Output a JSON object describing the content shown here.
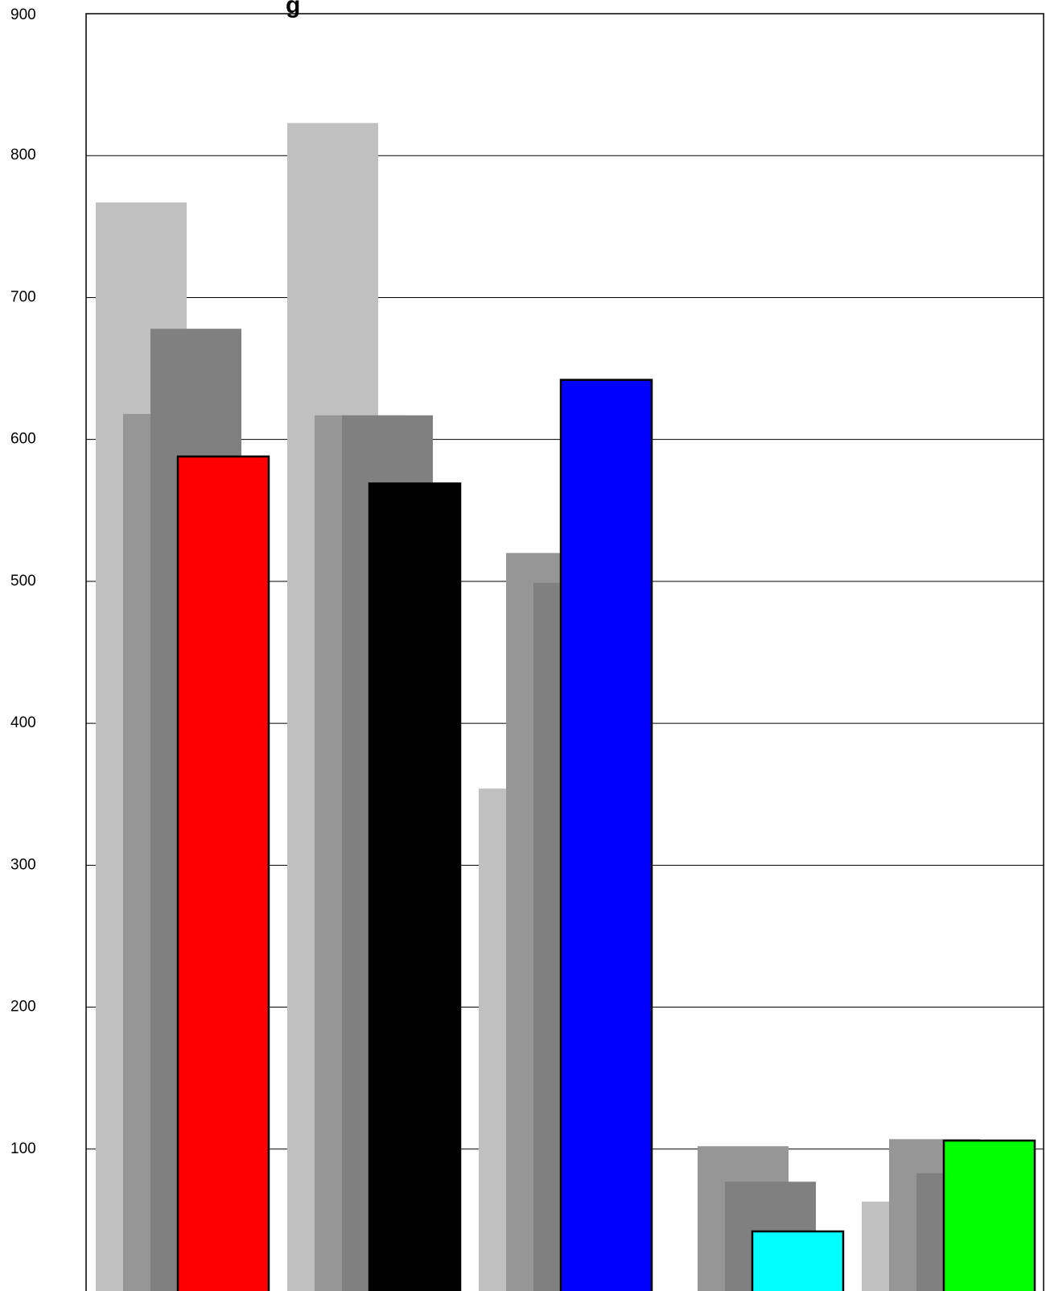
{
  "chart_data": {
    "type": "bar",
    "title": "g",
    "xlabel": "",
    "ylabel": "",
    "ylim": [
      0,
      900
    ],
    "yticks": [
      "900",
      "800",
      "700",
      "600",
      "500",
      "400",
      "300",
      "200",
      "100"
    ],
    "grid": true,
    "colors": {
      "back_bar": "#c0c0c0",
      "mid_bar": "#969696",
      "inner_bar": "#808080",
      "outline": "#000000"
    },
    "groups": [
      {
        "values": [
          767,
          618,
          678,
          588
        ],
        "front_color": "#ff0000"
      },
      {
        "values": [
          823,
          617,
          617,
          569
        ],
        "front_color": "#000000"
      },
      {
        "values": [
          354,
          520,
          499,
          642
        ],
        "front_color": "#0000ff"
      },
      {
        "values": [
          0,
          102,
          77,
          42
        ],
        "front_color": "#00ffff"
      },
      {
        "values": [
          63,
          107,
          83,
          106
        ],
        "front_color": "#00ff00"
      }
    ]
  }
}
